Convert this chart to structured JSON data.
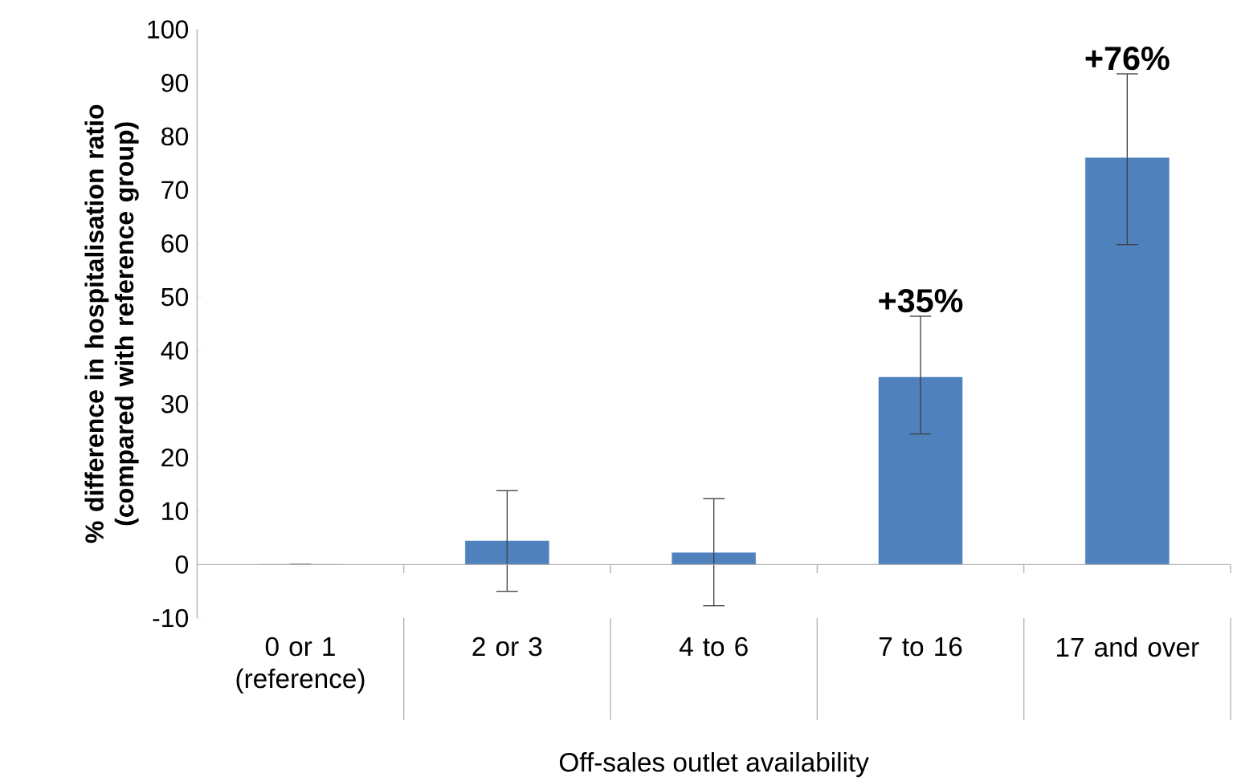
{
  "chart_data": {
    "type": "bar",
    "xlabel": "Off-sales outlet availability",
    "ylabel": "% difference in hospitalisation ratio (compared with reference group)",
    "categories": [
      "0 or 1 (reference)",
      "2 or 3",
      "4 to 6",
      "7 to 16",
      "17 and over"
    ],
    "values": [
      0,
      4.4,
      2.2,
      35,
      76
    ],
    "errors": [
      null,
      [
        -5.0,
        13.8
      ],
      [
        -7.7,
        12.3
      ],
      [
        24.4,
        46.4
      ],
      [
        59.8,
        91.7
      ]
    ],
    "value_labels": [
      null,
      null,
      null,
      "+35%",
      "+76%"
    ],
    "color": "#4f81bd",
    "ylim": [
      -10,
      100
    ],
    "yticks": [
      -10,
      0,
      10,
      20,
      30,
      40,
      50,
      60,
      70,
      80,
      90,
      100
    ]
  }
}
